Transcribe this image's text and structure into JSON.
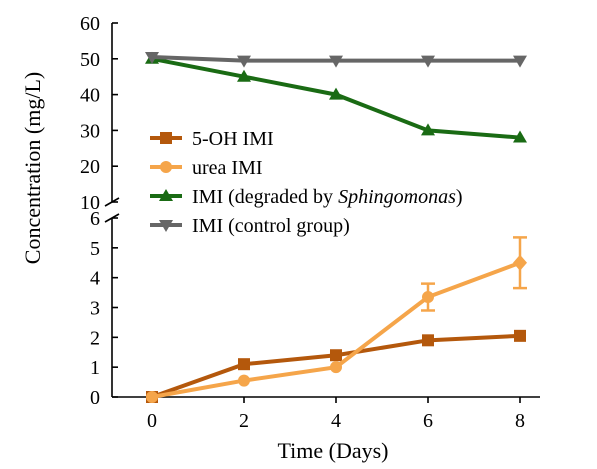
{
  "chart_data": {
    "type": "line",
    "title": "",
    "xlabel": "Time (Days)",
    "ylabel": "Concentration (mg/L)",
    "x": [
      0,
      2,
      4,
      6,
      8
    ],
    "x_ticks": [
      "0",
      "2",
      "4",
      "6",
      "8"
    ],
    "xlim": [
      -0.4,
      9
    ],
    "y_upper": {
      "ylim": [
        10,
        60
      ],
      "ticks": [
        "10",
        "20",
        "30",
        "40",
        "50",
        "60"
      ]
    },
    "y_lower": {
      "ylim": [
        0,
        6
      ],
      "ticks": [
        "0",
        "1",
        "2",
        "3",
        "4",
        "5",
        "6"
      ]
    },
    "axis_break": true,
    "legend_position": "center-left",
    "series": [
      {
        "name": "5-OH IMI",
        "legend_parts": [
          "5-OH IMI"
        ],
        "color": "#b4580c",
        "marker": "square",
        "panel": "lower",
        "values": [
          0,
          1.1,
          1.4,
          1.9,
          2.05
        ],
        "errors": [
          0,
          0,
          0,
          0,
          0
        ]
      },
      {
        "name": "urea IMI",
        "legend_parts": [
          "urea IMI"
        ],
        "color": "#f5a54a",
        "marker": "circle",
        "panel": "lower",
        "values": [
          0,
          0.55,
          1.0,
          3.35,
          4.5
        ],
        "errors": [
          0,
          0,
          0,
          0.45,
          0.85
        ]
      },
      {
        "name": "IMI (degraded by Sphingomonas)",
        "legend_parts": [
          "IMI (degraded by ",
          "Sphingomonas",
          ")"
        ],
        "color": "#1a6b14",
        "marker": "triangle-up",
        "panel": "upper",
        "values": [
          50,
          45,
          40,
          30,
          28
        ],
        "errors": [
          0,
          0,
          0,
          0,
          0
        ]
      },
      {
        "name": "IMI (control group)",
        "legend_parts": [
          "IMI (control group)"
        ],
        "color": "#666666",
        "marker": "triangle-down",
        "panel": "upper",
        "values": [
          50.5,
          49.5,
          49.5,
          49.5,
          49.5
        ],
        "errors": [
          0,
          0,
          0,
          0,
          0
        ]
      }
    ]
  }
}
